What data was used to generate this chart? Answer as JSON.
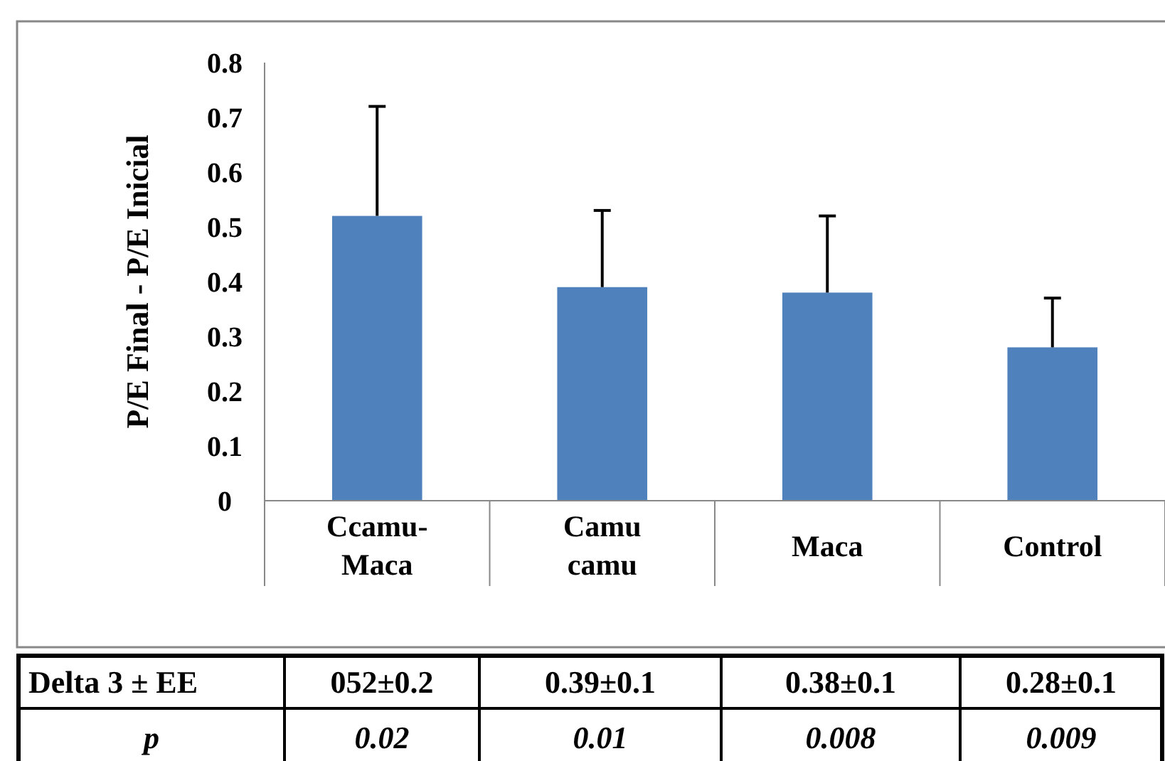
{
  "chart_data": {
    "type": "bar",
    "ylabel": "P/E Final - P/E Inicial",
    "categories": [
      "Ccamu-Maca",
      "Camu camu",
      "Maca",
      "Control"
    ],
    "values": [
      0.52,
      0.39,
      0.38,
      0.28
    ],
    "errors": [
      [
        0.52,
        0.72
      ],
      [
        0.39,
        0.53
      ],
      [
        0.38,
        0.52
      ],
      [
        0.28,
        0.37
      ]
    ],
    "color": "#4f81bd",
    "ylim": [
      0,
      0.8
    ],
    "yticks": [
      0,
      0.1,
      0.2,
      0.3,
      0.4,
      0.5,
      0.6,
      0.7,
      0.8
    ],
    "grid": false,
    "annotations": [
      "Delta 3 ± EE",
      "p",
      "0.02",
      "0.01",
      "0.008",
      "0.009",
      "052±0.2",
      "0.39±0.1",
      "0.38±0.1",
      "0.28±0.1"
    ]
  }
}
